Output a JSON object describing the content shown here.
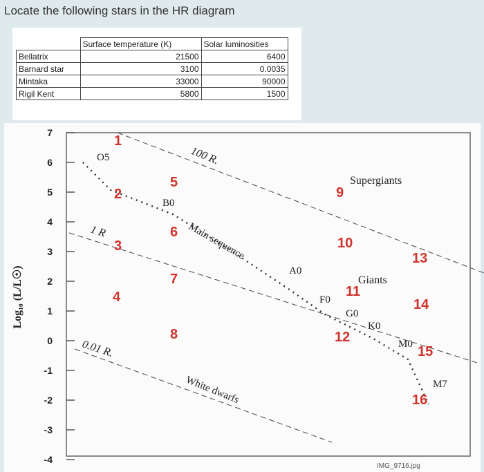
{
  "title": "Locate the following stars in the HR diagram",
  "table": {
    "header": [
      "Surface temperature (K)",
      "Solar luminosities"
    ],
    "rows": [
      [
        "Bellatrix",
        21500,
        6400
      ],
      [
        "Barnard star",
        3100,
        0.0035
      ],
      [
        "Mintaka",
        33000,
        90000
      ],
      [
        "Rigil Kent",
        5800,
        1500
      ]
    ]
  },
  "diagram": {
    "y_label": "Log₁₀ (L/L☉)",
    "ylim": [
      -4,
      7
    ],
    "yticks": [
      7,
      6,
      5,
      4,
      3,
      2,
      1,
      0,
      -1,
      -2,
      -3,
      -4
    ],
    "spectral_classes": [
      "O5",
      "B0",
      "A0",
      "F0",
      "G0",
      "K0",
      "M0",
      "M7"
    ],
    "radius_lines": [
      "100 R.",
      "1 R",
      "0.01 R."
    ],
    "regions": [
      "Main sequence",
      "Supergiants",
      "Giants",
      "White dwarfs"
    ],
    "star_numbers": [
      1,
      2,
      3,
      4,
      5,
      6,
      7,
      8,
      9,
      10,
      11,
      12,
      13,
      14,
      15,
      16
    ]
  },
  "footer": "IMG_9716.jpg"
}
